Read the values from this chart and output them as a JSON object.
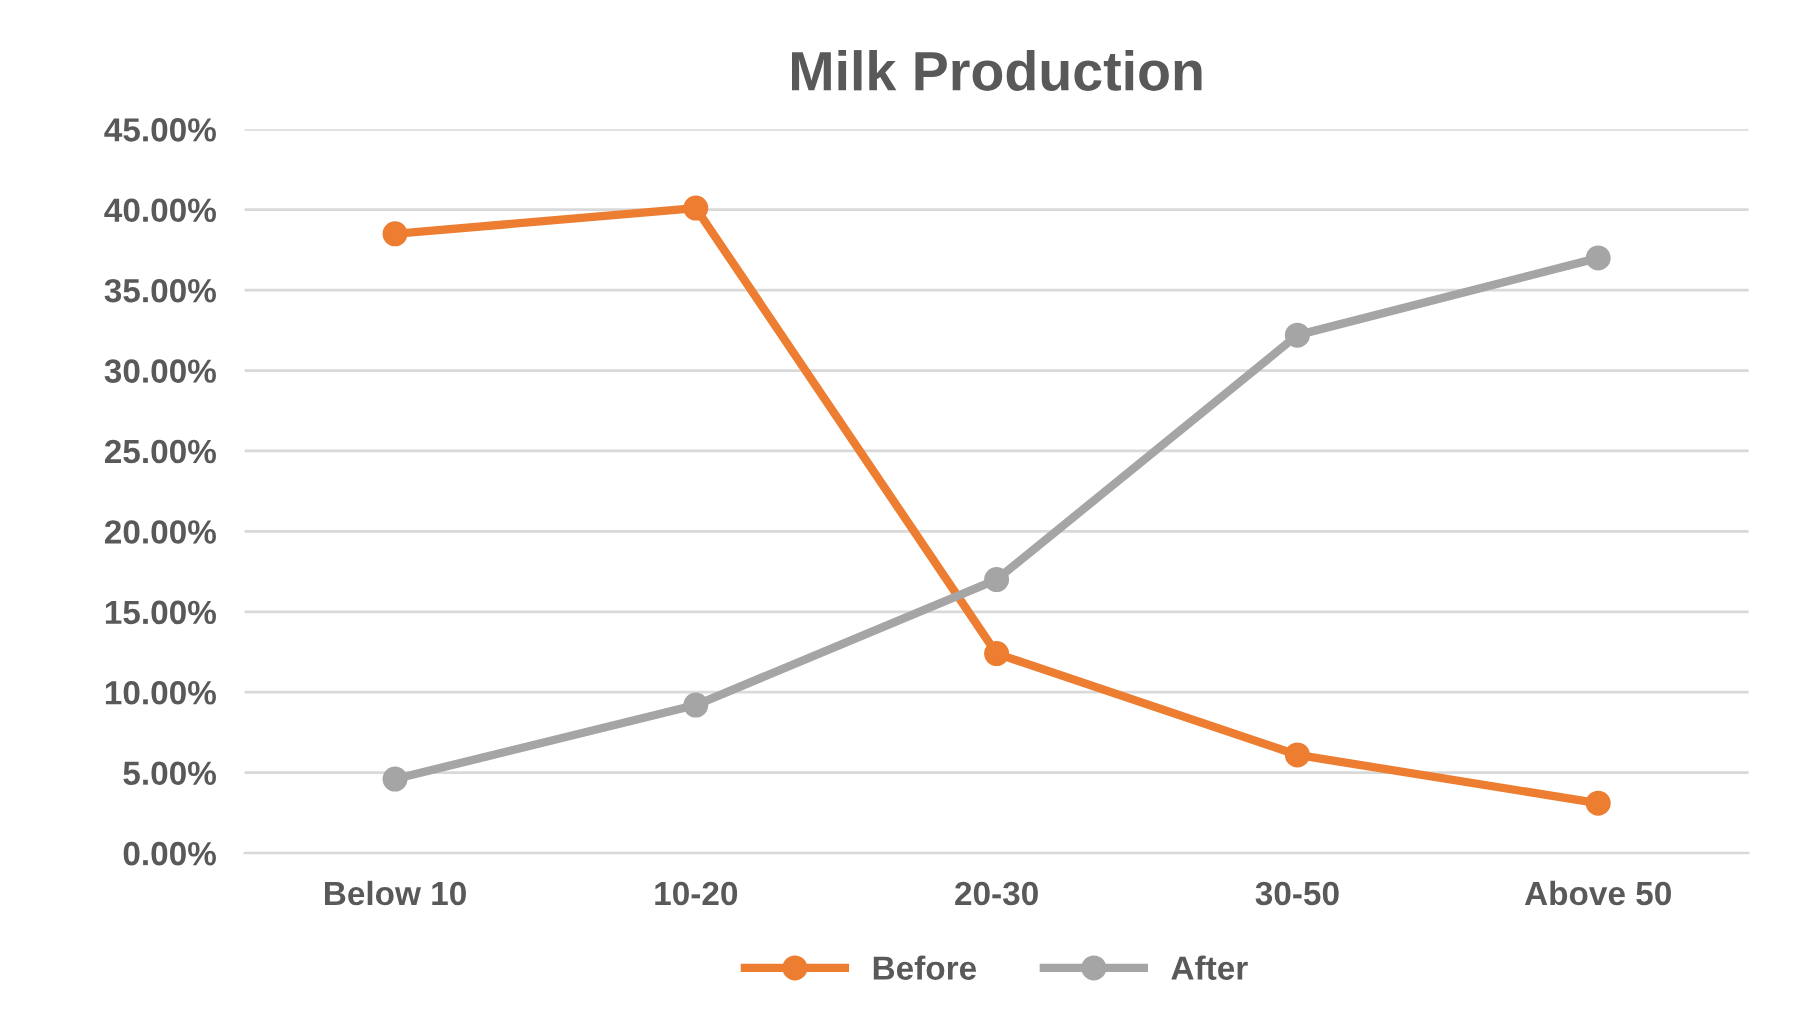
{
  "chart_data": {
    "type": "line",
    "title": "Milk Production",
    "categories": [
      "Below 10",
      "10-20",
      "20-30",
      "30-50",
      "Above 50"
    ],
    "series": [
      {
        "name": "Before",
        "color": "#ed7d31",
        "values": [
          38.5,
          40.1,
          12.4,
          6.1,
          3.1
        ]
      },
      {
        "name": "After",
        "color": "#a5a5a5",
        "values": [
          4.6,
          9.2,
          17.0,
          32.2,
          37.0
        ]
      }
    ],
    "ylim": [
      0,
      45
    ],
    "yticks": [
      {
        "value": 0,
        "label": "0.00%"
      },
      {
        "value": 5,
        "label": "5.00%"
      },
      {
        "value": 10,
        "label": "10.00%"
      },
      {
        "value": 15,
        "label": "15.00%"
      },
      {
        "value": 20,
        "label": "20.00%"
      },
      {
        "value": 25,
        "label": "25.00%"
      },
      {
        "value": 30,
        "label": "30.00%"
      },
      {
        "value": 35,
        "label": "35.00%"
      },
      {
        "value": 40,
        "label": "40.00%"
      },
      {
        "value": 45,
        "label": "45.00%"
      }
    ],
    "grid": "y",
    "legend": "bottom",
    "marker": "circle",
    "line_style": "solid"
  }
}
